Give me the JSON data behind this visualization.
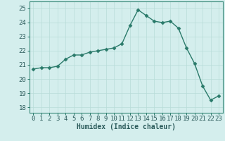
{
  "x": [
    0,
    1,
    2,
    3,
    4,
    5,
    6,
    7,
    8,
    9,
    10,
    11,
    12,
    13,
    14,
    15,
    16,
    17,
    18,
    19,
    20,
    21,
    22,
    23
  ],
  "y": [
    20.7,
    20.8,
    20.8,
    20.9,
    21.4,
    21.7,
    21.7,
    21.9,
    22.0,
    22.1,
    22.2,
    22.5,
    23.8,
    24.9,
    24.5,
    24.1,
    24.0,
    24.1,
    23.6,
    22.2,
    21.1,
    19.5,
    18.5,
    18.8
  ],
  "line_color": "#2a7a6a",
  "marker": "D",
  "marker_size": 2.5,
  "line_width": 1.0,
  "bg_color": "#d4eeed",
  "grid_color": "#b8dcd8",
  "xlabel": "Humidex (Indice chaleur)",
  "ylim": [
    17.6,
    25.5
  ],
  "yticks": [
    18,
    19,
    20,
    21,
    22,
    23,
    24,
    25
  ],
  "xlim": [
    -0.5,
    23.5
  ],
  "xticks": [
    0,
    1,
    2,
    3,
    4,
    5,
    6,
    7,
    8,
    9,
    10,
    11,
    12,
    13,
    14,
    15,
    16,
    17,
    18,
    19,
    20,
    21,
    22,
    23
  ],
  "xlabel_fontsize": 7,
  "tick_fontsize": 6.5
}
